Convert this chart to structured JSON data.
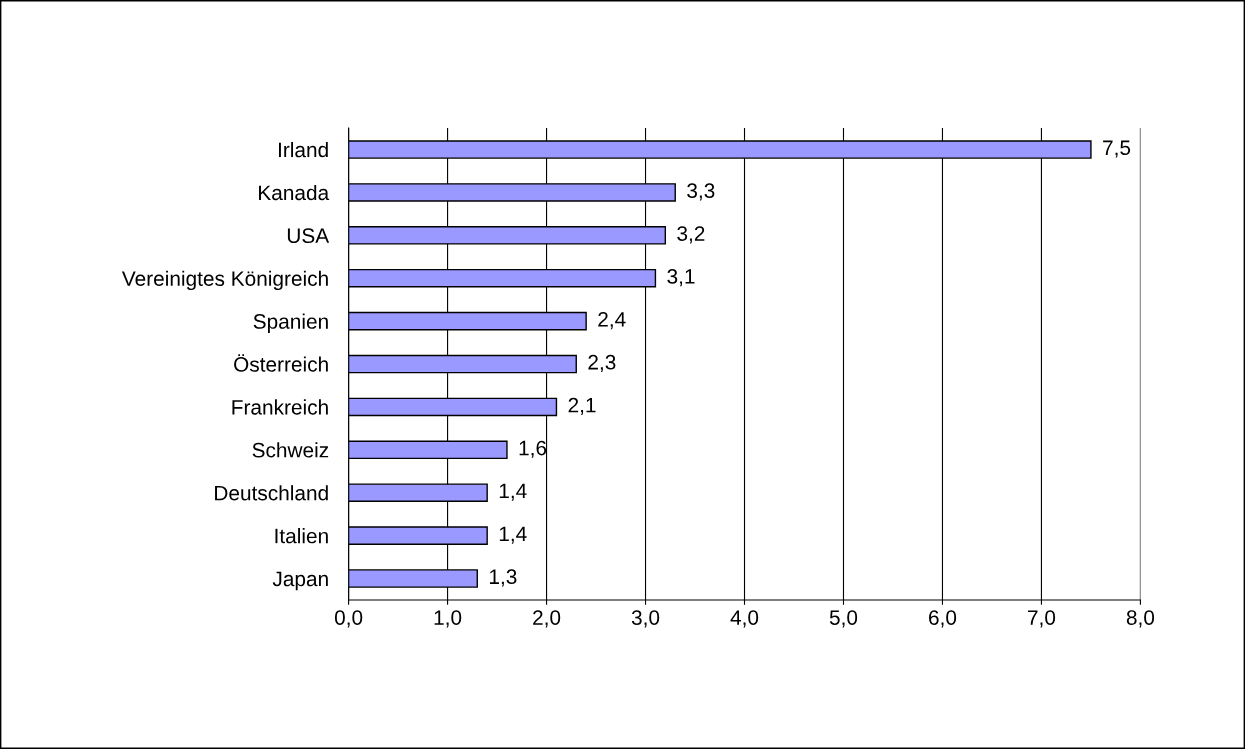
{
  "chart_data": {
    "type": "bar",
    "orientation": "horizontal",
    "categories": [
      "Irland",
      "Kanada",
      "USA",
      "Vereinigtes Königreich",
      "Spanien",
      "Österreich",
      "Frankreich",
      "Schweiz",
      "Deutschland",
      "Italien",
      "Japan"
    ],
    "values": [
      7.5,
      3.3,
      3.2,
      3.1,
      2.4,
      2.3,
      2.1,
      1.6,
      1.4,
      1.4,
      1.3
    ],
    "value_labels": [
      "7,5",
      "3,3",
      "3,2",
      "3,1",
      "2,4",
      "2,3",
      "2,1",
      "1,6",
      "1,4",
      "1,4",
      "1,3"
    ],
    "color": "#9999ff",
    "xlim": [
      0,
      8
    ],
    "xticks": [
      {
        "value": 0,
        "label": "0,0"
      },
      {
        "value": 1,
        "label": "1,0"
      },
      {
        "value": 2,
        "label": "2,0"
      },
      {
        "value": 3,
        "label": "3,0"
      },
      {
        "value": 4,
        "label": "4,0"
      },
      {
        "value": 5,
        "label": "5,0"
      },
      {
        "value": 6,
        "label": "6,0"
      },
      {
        "value": 7,
        "label": "7,0"
      },
      {
        "value": 8,
        "label": "8,0"
      }
    ],
    "grid": "x"
  }
}
